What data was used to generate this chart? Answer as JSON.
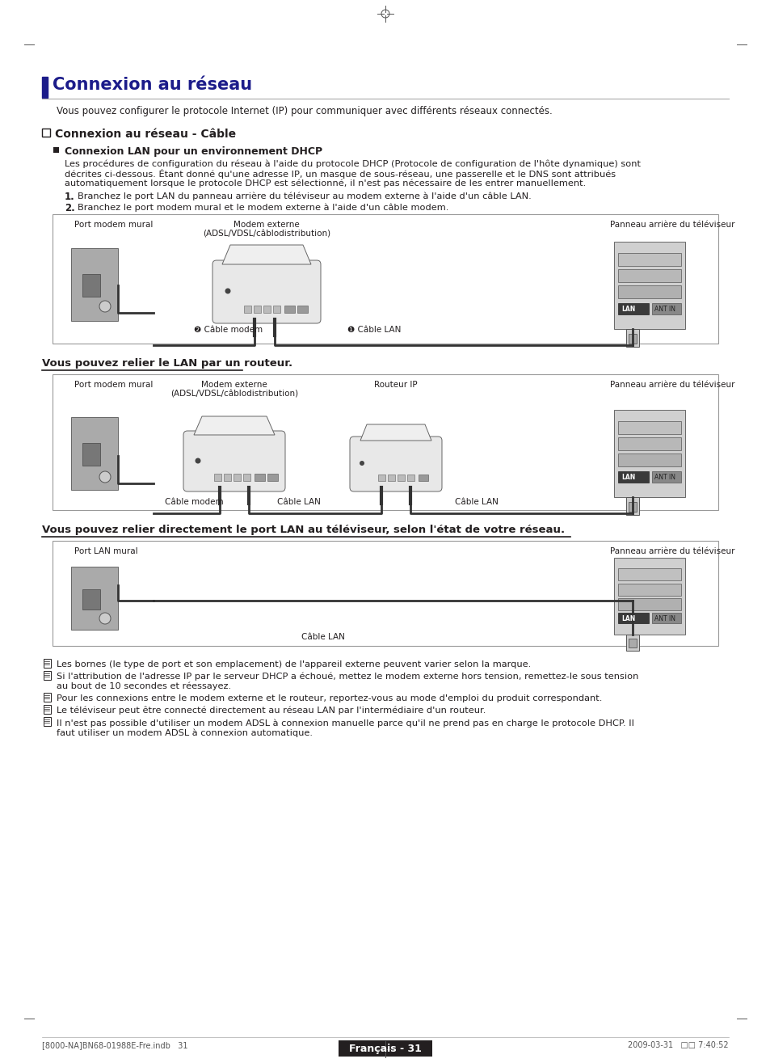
{
  "bg_color": "#ffffff",
  "title": "Connexion au réseau",
  "subtitle_intro": "Vous pouvez configurer le protocole Internet (IP) pour communiquer avec différents réseaux connectés.",
  "section1_title": "Connexion au réseau - Câble",
  "section2_title": "Connexion LAN pour un environnement DHCP",
  "para1_lines": [
    "Les procédures de configuration du réseau à l'aide du protocole DHCP (Protocole de configuration de l'hôte dynamique) sont",
    "décrites ci-dessous. Étant donné qu'une adresse IP, un masque de sous-réseau, une passerelle et le DNS sont attribués",
    "automatiquement lorsque le protocole DHCP est sélectionné, il n'est pas nécessaire de les entrer manuellement."
  ],
  "step1": "Branchez le port LAN du panneau arrière du téléviseur au modem externe à l'aide d'un câble LAN.",
  "step2": "Branchez le port modem mural et le modem externe à l'aide d'un câble modem.",
  "diagram1_label_left": "Port modem mural",
  "diagram1_label_center": "Modem externe\n(ADSL/VDSL/câblodistribution)",
  "diagram1_label_right": "Panneau arrière du téléviseur",
  "diagram1_cable1": "❷ Câble modem",
  "diagram1_cable2": "❶ Câble LAN",
  "section3_title": "Vous pouvez relier le LAN par un routeur.",
  "diagram2_label_left": "Port modem mural",
  "diagram2_label_center": "Modem externe\n(ADSL/VDSL/câblodistribution)",
  "diagram2_label_router": "Routeur IP",
  "diagram2_label_right": "Panneau arrière du téléviseur",
  "diagram2_cable1": "Câble modem",
  "diagram2_cable2": "Câble LAN",
  "diagram2_cable3": "Câble LAN",
  "section4_title": "Vous pouvez relier directement le port LAN au téléviseur, selon l'état de votre réseau.",
  "diagram3_label_left": "Port LAN mural",
  "diagram3_label_right": "Panneau arrière du téléviseur",
  "diagram3_cable": "Câble LAN",
  "notes": [
    "Les bornes (le type de port et son emplacement) de l'appareil externe peuvent varier selon la marque.",
    "Si l'attribution de l'adresse IP par le serveur DHCP a échoué, mettez le modem externe hors tension, remettez-le sous tension\nau bout de 10 secondes et réessayez.",
    "Pour les connexions entre le modem externe et le routeur, reportez-vous au mode d'emploi du produit correspondant.",
    "Le téléviseur peut être connecté directement au réseau LAN par l'intermédiaire d'un routeur.",
    "Il n'est pas possible d'utiliser un modem ADSL à connexion manuelle parce qu'il ne prend pas en charge le protocole DHCP. Il\nfaut utiliser un modem ADSL à connexion automatique."
  ],
  "footer_text": "Français - 31",
  "footer_left": "[8000-NA]BN68-01988E-Fre.indb   31",
  "footer_right": "2009-03-31   □□ 7:40:52"
}
